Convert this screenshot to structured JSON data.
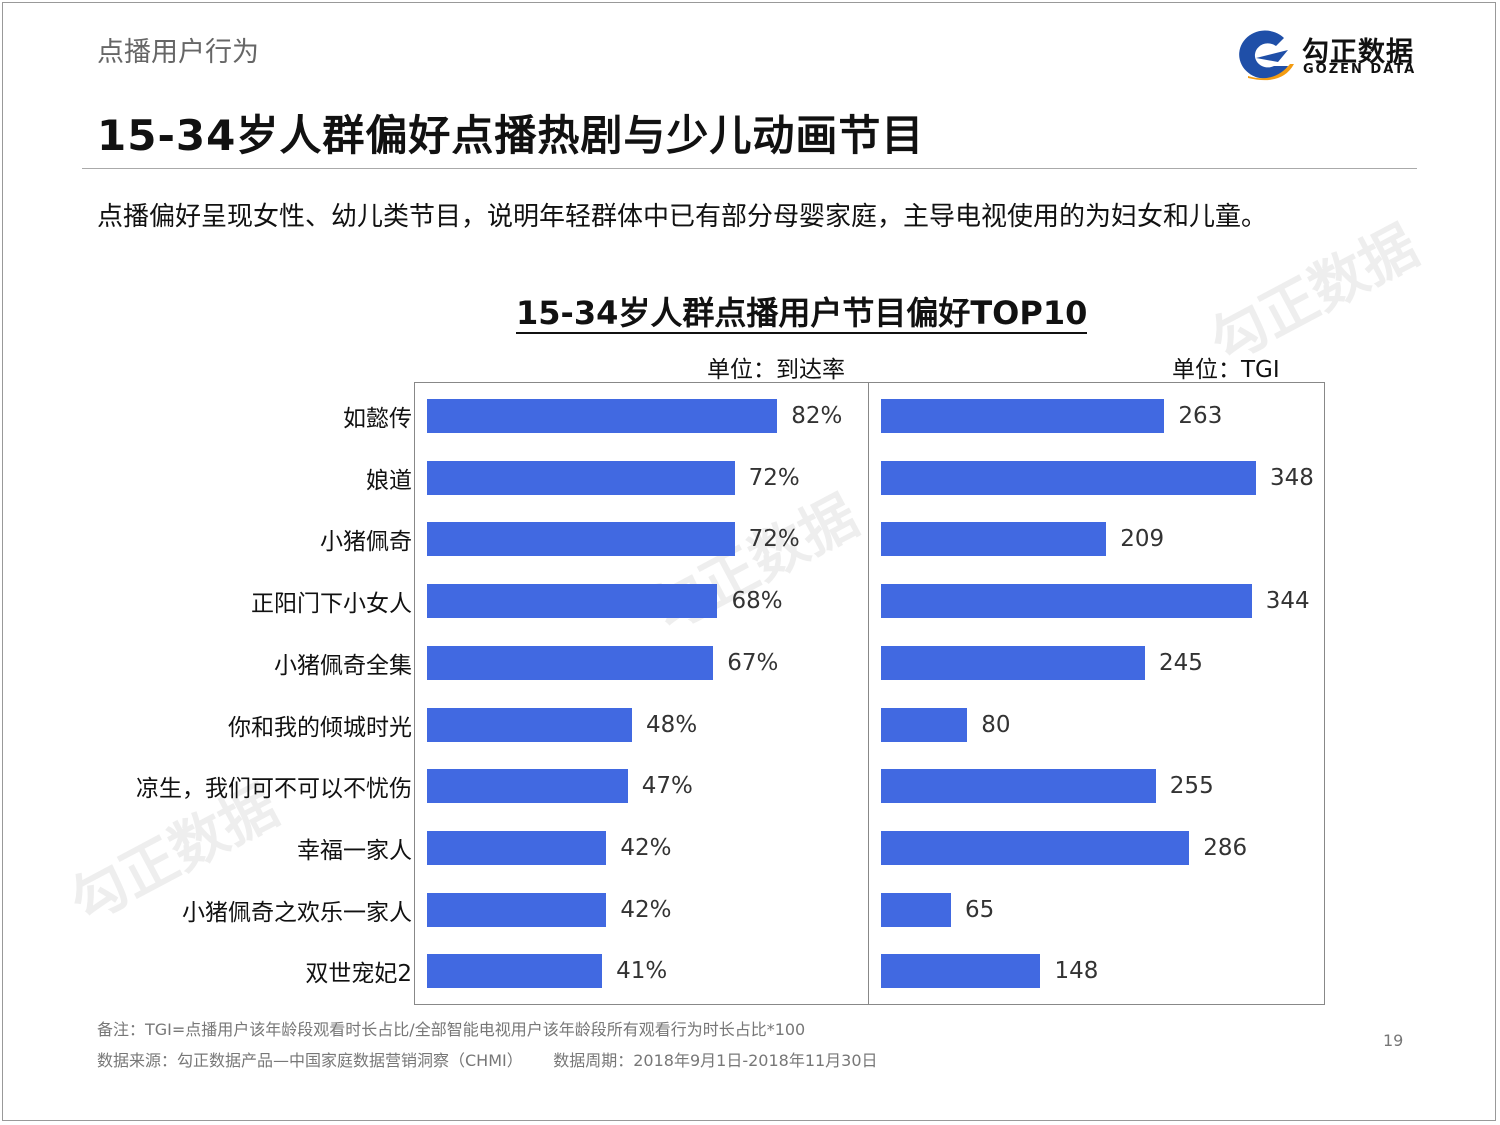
{
  "header": {
    "section": "点播用户行为",
    "title": "15-34岁人群偏好点播热剧与少儿动画节目",
    "subtitle": "点播偏好呈现女性、幼儿类节目，说明年轻群体中已有部分母婴家庭，主导电视使用的为妇女和儿童。",
    "logo": {
      "zh": "勾正数据",
      "en": "GOZEN DATA"
    }
  },
  "chart_data": {
    "type": "bar",
    "orientation": "horizontal",
    "title": "15-34岁人群点播用户节目偏好TOP10",
    "categories": [
      "如懿传",
      "娘道",
      "小猪佩奇",
      "正阳门下小女人",
      "小猪佩奇全集",
      "你和我的倾城时光",
      "凉生，我们可不可以不忧伤",
      "幸福一家人",
      "小猪佩奇之欢乐一家人",
      "双世宠妃2"
    ],
    "series": [
      {
        "unit_label": "单位：到达率",
        "values": [
          82,
          72,
          72,
          68,
          67,
          48,
          47,
          42,
          42,
          41
        ],
        "labels": [
          "82%",
          "72%",
          "72%",
          "68%",
          "67%",
          "48%",
          "47%",
          "42%",
          "42%",
          "41%"
        ],
        "xlim": [
          0,
          103
        ]
      },
      {
        "unit_label": "单位：TGI",
        "values": [
          263,
          348,
          209,
          344,
          245,
          80,
          255,
          286,
          65,
          148
        ],
        "labels": [
          "263",
          "348",
          "209",
          "344",
          "245",
          "80",
          "255",
          "286",
          "65",
          "148"
        ],
        "xlim": [
          0,
          412
        ]
      }
    ],
    "bar_color": "#4169e1",
    "grid": false
  },
  "footer": {
    "note": "备注：TGI=点播用户该年龄段观看时长占比/全部智能电视用户该年龄段所有观看行为时长占比*100",
    "source": "数据来源：勾正数据产品—中国家庭数据营销洞察（CHMI）      数据周期：2018年9月1日-2018年11月30日",
    "page": "19"
  }
}
